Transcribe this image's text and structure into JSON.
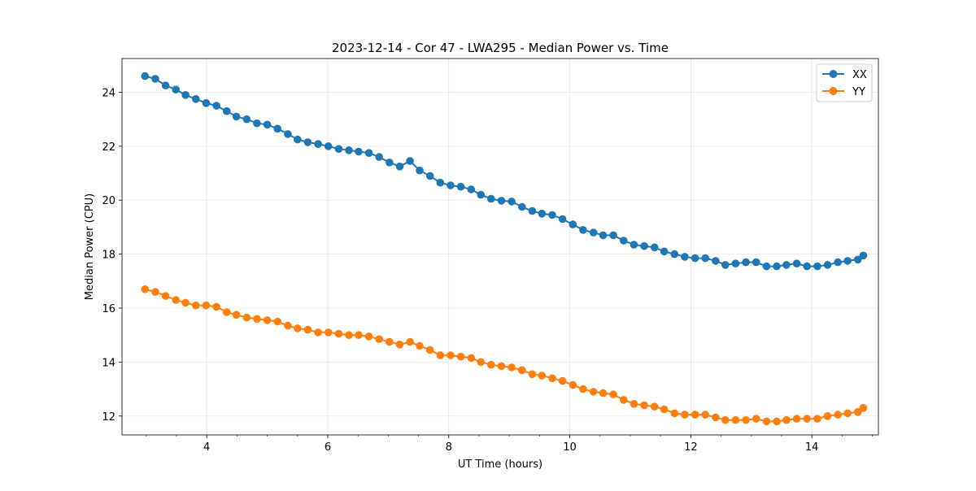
{
  "chart_data": {
    "type": "line",
    "title": "2023-12-14 - Cor 47 - LWA295 - Median Power vs. Time",
    "xlabel": "UT Time (hours)",
    "ylabel": "Median Power (CPU)",
    "xlim": [
      2.6,
      15.1
    ],
    "ylim": [
      11.3,
      25.25
    ],
    "xticks": [
      4,
      6,
      8,
      10,
      12,
      14
    ],
    "yticks": [
      12,
      14,
      16,
      18,
      20,
      22,
      24
    ],
    "xtick_labels": [
      "4",
      "6",
      "8",
      "10",
      "12",
      "14"
    ],
    "ytick_labels": [
      "12",
      "14",
      "16",
      "18",
      "20",
      "22",
      "24"
    ],
    "grid": true,
    "legend_position": "top-right",
    "x": [
      2.98,
      3.15,
      3.32,
      3.49,
      3.65,
      3.82,
      3.99,
      4.16,
      4.33,
      4.49,
      4.66,
      4.83,
      5.0,
      5.17,
      5.34,
      5.5,
      5.67,
      5.84,
      6.01,
      6.18,
      6.35,
      6.51,
      6.68,
      6.85,
      7.02,
      7.19,
      7.36,
      7.52,
      7.69,
      7.86,
      8.03,
      8.2,
      8.37,
      8.53,
      8.7,
      8.87,
      9.04,
      9.21,
      9.38,
      9.54,
      9.71,
      9.88,
      10.05,
      10.22,
      10.39,
      10.55,
      10.72,
      10.89,
      11.06,
      11.23,
      11.4,
      11.56,
      11.73,
      11.9,
      12.07,
      12.24,
      12.41,
      12.57,
      12.74,
      12.91,
      13.08,
      13.25,
      13.42,
      13.58,
      13.75,
      13.92,
      14.09,
      14.26,
      14.43,
      14.59,
      14.76,
      14.85
    ],
    "series": [
      {
        "name": "XX",
        "color": "#1f77b4",
        "values": [
          24.6,
          24.5,
          24.25,
          24.1,
          23.9,
          23.75,
          23.6,
          23.5,
          23.3,
          23.1,
          23.0,
          22.85,
          22.8,
          22.65,
          22.45,
          22.25,
          22.15,
          22.08,
          22.0,
          21.9,
          21.85,
          21.8,
          21.75,
          21.6,
          21.4,
          21.25,
          21.45,
          21.1,
          20.9,
          20.65,
          20.55,
          20.5,
          20.4,
          20.2,
          20.05,
          19.98,
          19.95,
          19.75,
          19.6,
          19.5,
          19.45,
          19.3,
          19.1,
          18.9,
          18.8,
          18.7,
          18.7,
          18.5,
          18.35,
          18.3,
          18.25,
          18.1,
          18.0,
          17.9,
          17.85,
          17.85,
          17.75,
          17.6,
          17.65,
          17.7,
          17.7,
          17.55,
          17.55,
          17.6,
          17.65,
          17.55,
          17.55,
          17.6,
          17.7,
          17.75,
          17.8,
          17.95
        ]
      },
      {
        "name": "YY",
        "color": "#ff7f0e",
        "values": [
          16.7,
          16.6,
          16.45,
          16.3,
          16.2,
          16.1,
          16.1,
          16.05,
          15.85,
          15.75,
          15.65,
          15.6,
          15.55,
          15.5,
          15.35,
          15.25,
          15.2,
          15.1,
          15.1,
          15.05,
          15.0,
          15.0,
          14.95,
          14.85,
          14.75,
          14.65,
          14.75,
          14.6,
          14.45,
          14.25,
          14.25,
          14.2,
          14.15,
          14.0,
          13.9,
          13.85,
          13.8,
          13.7,
          13.55,
          13.5,
          13.4,
          13.3,
          13.15,
          13.0,
          12.9,
          12.85,
          12.8,
          12.6,
          12.45,
          12.4,
          12.35,
          12.25,
          12.1,
          12.05,
          12.05,
          12.05,
          11.95,
          11.85,
          11.85,
          11.85,
          11.9,
          11.8,
          11.8,
          11.85,
          11.9,
          11.9,
          11.9,
          12.0,
          12.05,
          12.1,
          12.15,
          12.3
        ]
      }
    ]
  }
}
